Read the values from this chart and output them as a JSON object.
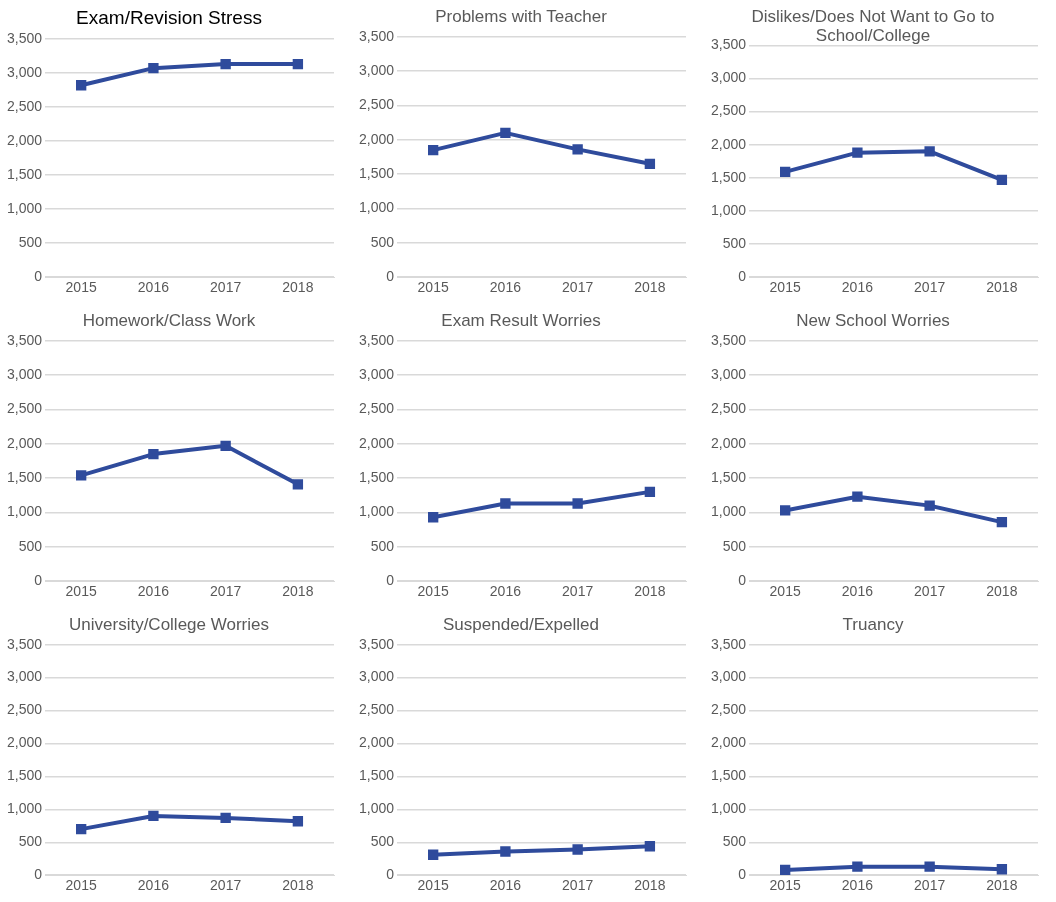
{
  "chart_data": [
    {
      "type": "line",
      "title": "Exam/Revision Stress",
      "categories": [
        "2015",
        "2016",
        "2017",
        "2018"
      ],
      "series": [
        {
          "color": "#2f4b9c",
          "values": [
            2820,
            3070,
            3130,
            3130
          ]
        }
      ],
      "ylim": [
        0,
        3500
      ],
      "yticks": [
        {
          "value": 0,
          "label": "0"
        },
        {
          "value": 500,
          "label": "500"
        },
        {
          "value": 1000,
          "label": "1,000"
        },
        {
          "value": 1500,
          "label": "1,500"
        },
        {
          "value": 2000,
          "label": "2,000"
        },
        {
          "value": 2500,
          "label": "2,500"
        },
        {
          "value": 3000,
          "label": "3,000"
        },
        {
          "value": 3500,
          "label": "3,500"
        }
      ],
      "grid": "y",
      "marker": "square"
    },
    {
      "type": "line",
      "title": "Problems with Teacher",
      "categories": [
        "2015",
        "2016",
        "2017",
        "2018"
      ],
      "series": [
        {
          "color": "#2f4b9c",
          "values": [
            1850,
            2100,
            1860,
            1650
          ]
        }
      ],
      "ylim": [
        0,
        3500
      ],
      "yticks": [
        {
          "value": 0,
          "label": "0"
        },
        {
          "value": 500,
          "label": "500"
        },
        {
          "value": 1000,
          "label": "1,000"
        },
        {
          "value": 1500,
          "label": "1,500"
        },
        {
          "value": 2000,
          "label": "2,000"
        },
        {
          "value": 2500,
          "label": "2,500"
        },
        {
          "value": 3000,
          "label": "3,000"
        },
        {
          "value": 3500,
          "label": "3,500"
        }
      ],
      "grid": "y",
      "marker": "square"
    },
    {
      "type": "line",
      "title": "Dislikes/Does Not Want to Go to School/College",
      "categories": [
        "2015",
        "2016",
        "2017",
        "2018"
      ],
      "series": [
        {
          "color": "#2f4b9c",
          "values": [
            1590,
            1880,
            1900,
            1470
          ]
        }
      ],
      "ylim": [
        0,
        3500
      ],
      "yticks": [
        {
          "value": 0,
          "label": "0"
        },
        {
          "value": 500,
          "label": "500"
        },
        {
          "value": 1000,
          "label": "1,000"
        },
        {
          "value": 1500,
          "label": "1,500"
        },
        {
          "value": 2000,
          "label": "2,000"
        },
        {
          "value": 2500,
          "label": "2,500"
        },
        {
          "value": 3000,
          "label": "3,000"
        },
        {
          "value": 3500,
          "label": "3,500"
        }
      ],
      "grid": "y",
      "marker": "square"
    },
    {
      "type": "line",
      "title": "Homework/Class Work",
      "categories": [
        "2015",
        "2016",
        "2017",
        "2018"
      ],
      "series": [
        {
          "color": "#2f4b9c",
          "values": [
            1540,
            1850,
            1970,
            1410
          ]
        }
      ],
      "ylim": [
        0,
        3500
      ],
      "yticks": [
        {
          "value": 0,
          "label": "0"
        },
        {
          "value": 500,
          "label": "500"
        },
        {
          "value": 1000,
          "label": "1,000"
        },
        {
          "value": 1500,
          "label": "1,500"
        },
        {
          "value": 2000,
          "label": "2,000"
        },
        {
          "value": 2500,
          "label": "2,500"
        },
        {
          "value": 3000,
          "label": "3,000"
        },
        {
          "value": 3500,
          "label": "3,500"
        }
      ],
      "grid": "y",
      "marker": "square"
    },
    {
      "type": "line",
      "title": "Exam Result Worries",
      "categories": [
        "2015",
        "2016",
        "2017",
        "2018"
      ],
      "series": [
        {
          "color": "#2f4b9c",
          "values": [
            930,
            1130,
            1130,
            1300
          ]
        }
      ],
      "ylim": [
        0,
        3500
      ],
      "yticks": [
        {
          "value": 0,
          "label": "0"
        },
        {
          "value": 500,
          "label": "500"
        },
        {
          "value": 1000,
          "label": "1,000"
        },
        {
          "value": 1500,
          "label": "1,500"
        },
        {
          "value": 2000,
          "label": "2,000"
        },
        {
          "value": 2500,
          "label": "2,500"
        },
        {
          "value": 3000,
          "label": "3,000"
        },
        {
          "value": 3500,
          "label": "3,500"
        }
      ],
      "grid": "y",
      "marker": "square"
    },
    {
      "type": "line",
      "title": "New School Worries",
      "categories": [
        "2015",
        "2016",
        "2017",
        "2018"
      ],
      "series": [
        {
          "color": "#2f4b9c",
          "values": [
            1030,
            1230,
            1100,
            860
          ]
        }
      ],
      "ylim": [
        0,
        3500
      ],
      "yticks": [
        {
          "value": 0,
          "label": "0"
        },
        {
          "value": 500,
          "label": "500"
        },
        {
          "value": 1000,
          "label": "1,000"
        },
        {
          "value": 1500,
          "label": "1,500"
        },
        {
          "value": 2000,
          "label": "2,000"
        },
        {
          "value": 2500,
          "label": "2,500"
        },
        {
          "value": 3000,
          "label": "3,000"
        },
        {
          "value": 3500,
          "label": "3,500"
        }
      ],
      "grid": "y",
      "marker": "square"
    },
    {
      "type": "line",
      "title": "University/College Worries",
      "categories": [
        "2015",
        "2016",
        "2017",
        "2018"
      ],
      "series": [
        {
          "color": "#2f4b9c",
          "values": [
            700,
            900,
            870,
            820
          ]
        }
      ],
      "ylim": [
        0,
        3500
      ],
      "yticks": [
        {
          "value": 0,
          "label": "0"
        },
        {
          "value": 500,
          "label": "500"
        },
        {
          "value": 1000,
          "label": "1,000"
        },
        {
          "value": 1500,
          "label": "1,500"
        },
        {
          "value": 2000,
          "label": "2,000"
        },
        {
          "value": 2500,
          "label": "2,500"
        },
        {
          "value": 3000,
          "label": "3,000"
        },
        {
          "value": 3500,
          "label": "3,500"
        }
      ],
      "grid": "y",
      "marker": "square"
    },
    {
      "type": "line",
      "title": "Suspended/Expelled",
      "categories": [
        "2015",
        "2016",
        "2017",
        "2018"
      ],
      "series": [
        {
          "color": "#2f4b9c",
          "values": [
            310,
            360,
            390,
            440
          ]
        }
      ],
      "ylim": [
        0,
        3500
      ],
      "yticks": [
        {
          "value": 0,
          "label": "0"
        },
        {
          "value": 500,
          "label": "500"
        },
        {
          "value": 1000,
          "label": "1,000"
        },
        {
          "value": 1500,
          "label": "1,500"
        },
        {
          "value": 2000,
          "label": "2,000"
        },
        {
          "value": 2500,
          "label": "2,500"
        },
        {
          "value": 3000,
          "label": "3,000"
        },
        {
          "value": 3500,
          "label": "3,500"
        }
      ],
      "grid": "y",
      "marker": "square"
    },
    {
      "type": "line",
      "title": "Truancy",
      "categories": [
        "2015",
        "2016",
        "2017",
        "2018"
      ],
      "series": [
        {
          "color": "#2f4b9c",
          "values": [
            80,
            130,
            130,
            90
          ]
        }
      ],
      "ylim": [
        0,
        3500
      ],
      "yticks": [
        {
          "value": 0,
          "label": "0"
        },
        {
          "value": 500,
          "label": "500"
        },
        {
          "value": 1000,
          "label": "1,000"
        },
        {
          "value": 1500,
          "label": "1,500"
        },
        {
          "value": 2000,
          "label": "2,000"
        },
        {
          "value": 2500,
          "label": "2,500"
        },
        {
          "value": 3000,
          "label": "3,000"
        },
        {
          "value": 3500,
          "label": "3,500"
        }
      ],
      "grid": "y",
      "marker": "square"
    }
  ]
}
